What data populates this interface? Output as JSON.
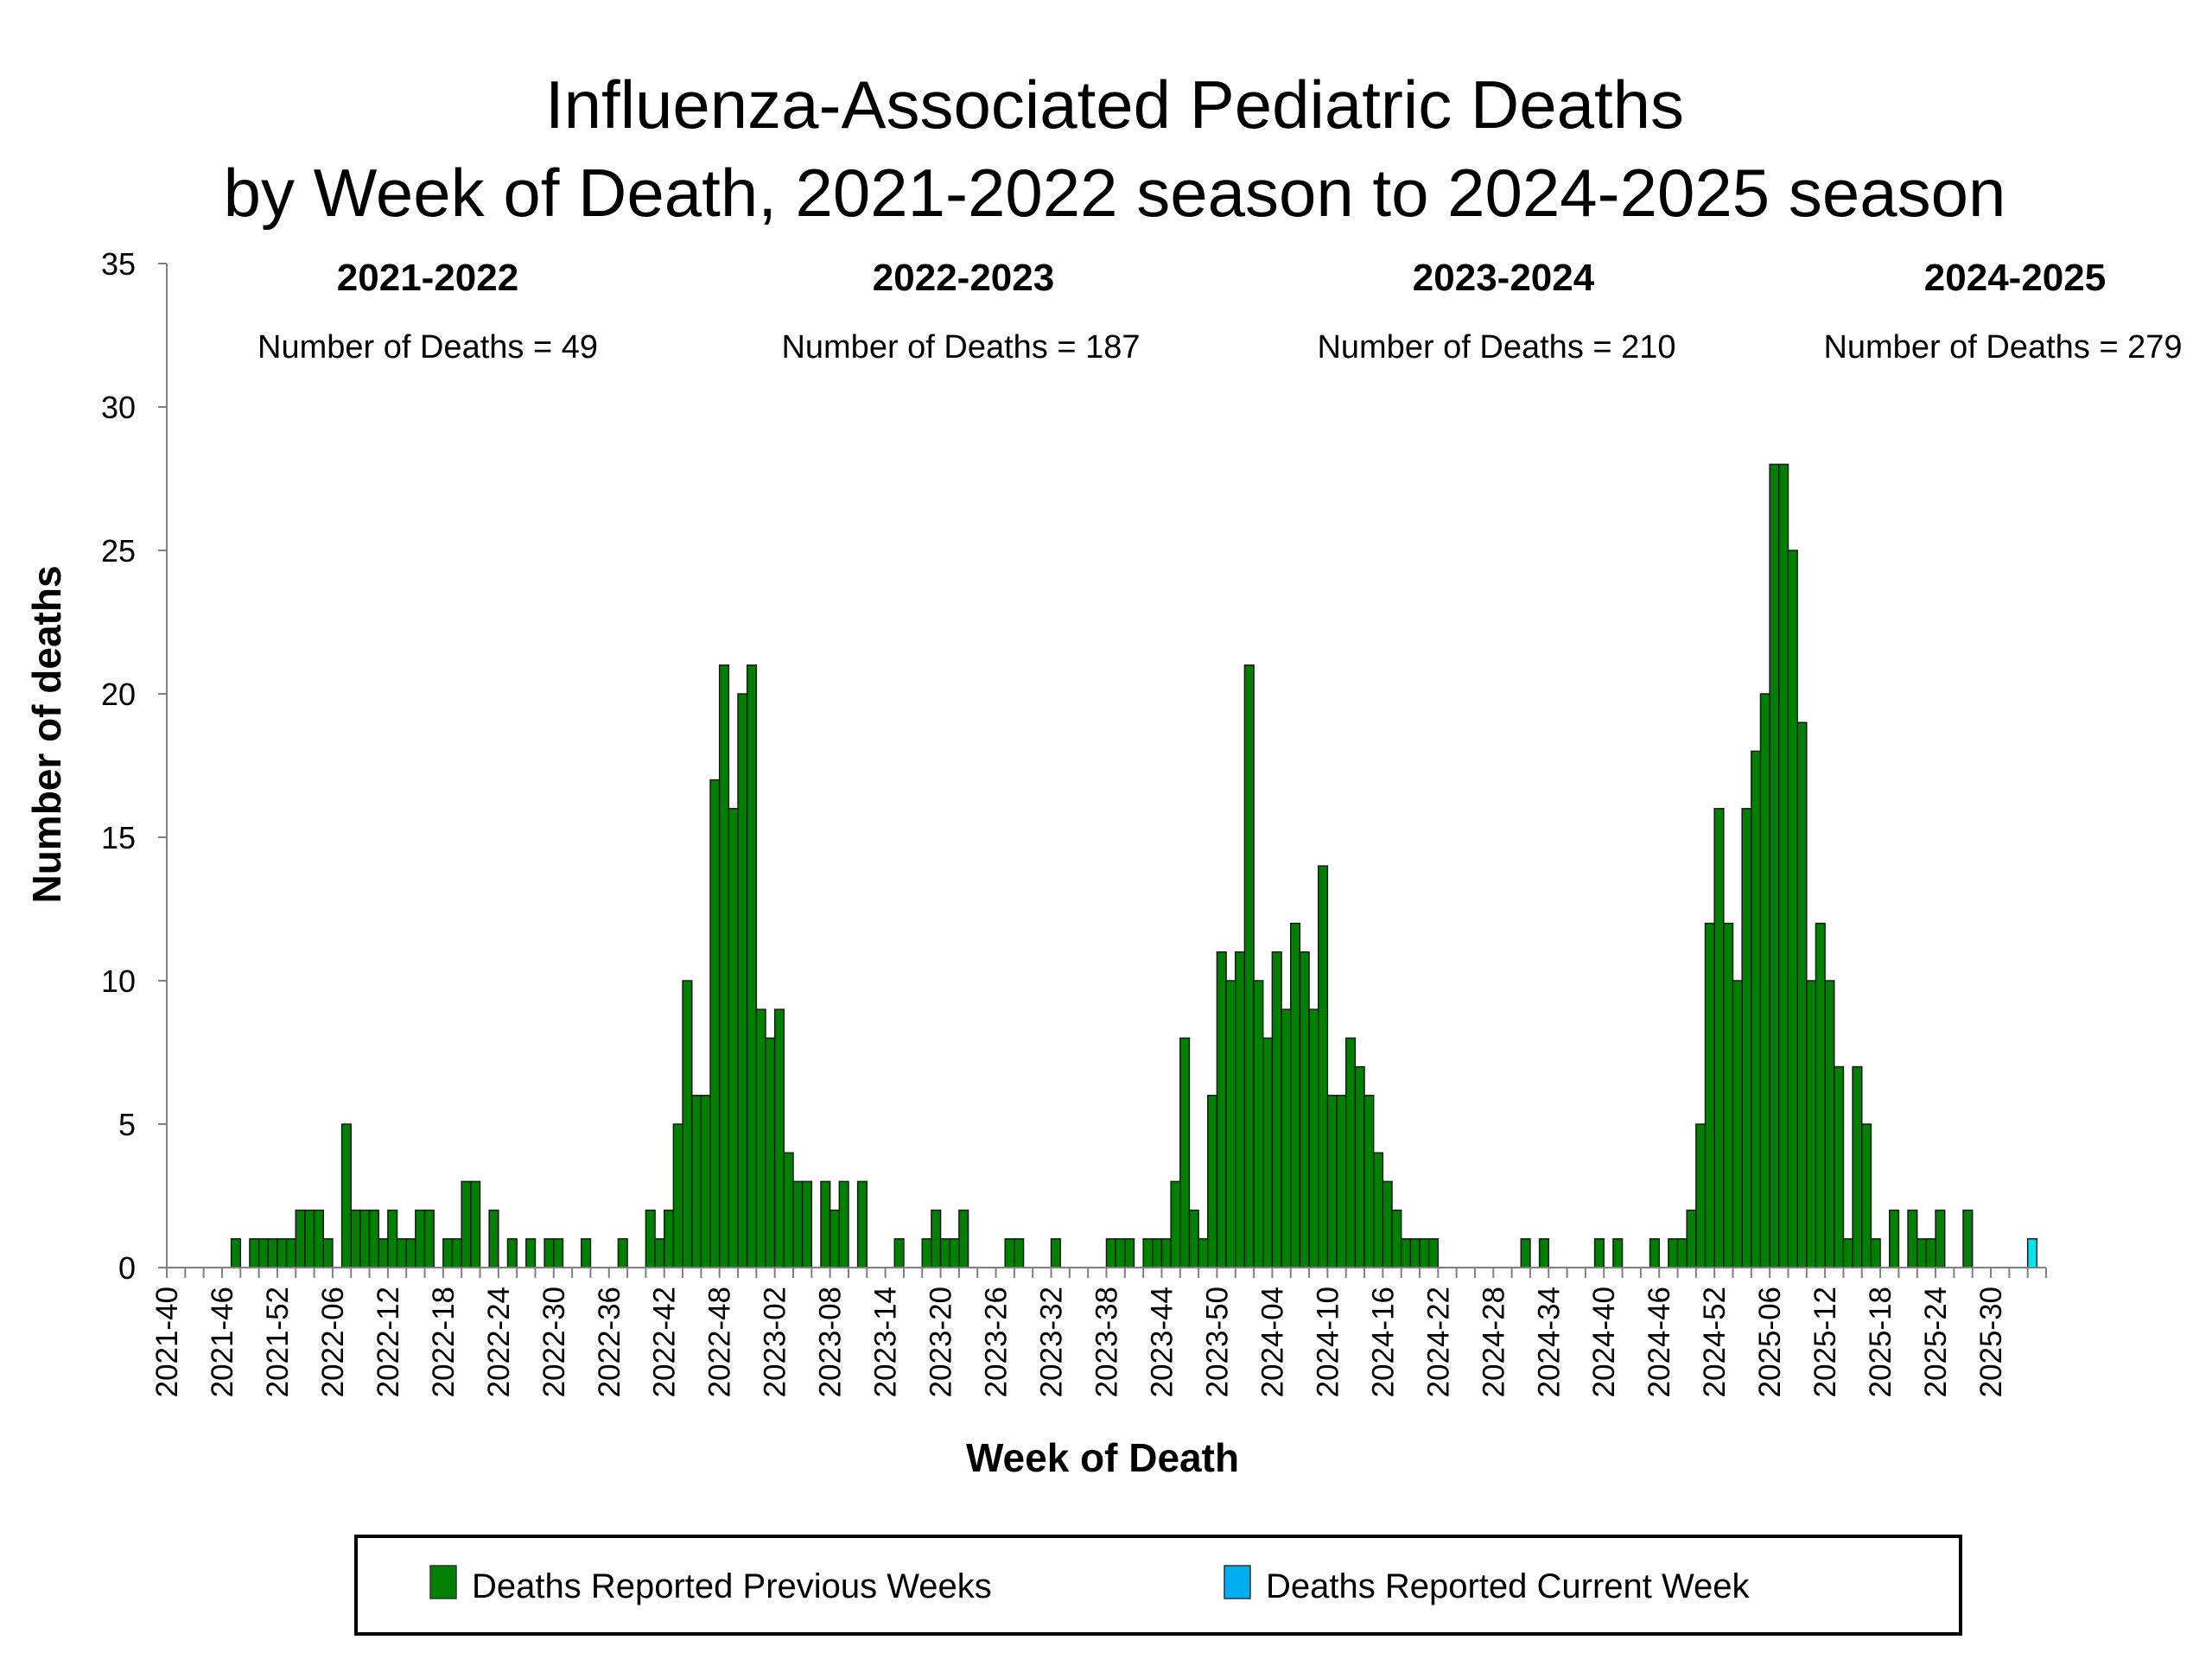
{
  "chart_data": {
    "type": "bar",
    "title": [
      "Influenza-Associated Pediatric Deaths",
      "by Week of Death, 2021-2022 season to 2024-2025 season"
    ],
    "xlabel": "Week of Death",
    "ylabel": "Number of deaths",
    "ylim": [
      0,
      35
    ],
    "yticks": [
      0,
      5,
      10,
      15,
      20,
      25,
      30,
      35
    ],
    "grid": false,
    "stacked": true,
    "legend_position": "bottom",
    "x_tick_labels": [
      "2021-40",
      "2021-46",
      "2021-52",
      "2022-06",
      "2022-12",
      "2022-18",
      "2022-24",
      "2022-30",
      "2022-36",
      "2022-42",
      "2022-48",
      "2023-02",
      "2023-08",
      "2023-14",
      "2023-20",
      "2023-26",
      "2023-32",
      "2023-38",
      "2023-44",
      "2023-50",
      "2024-04",
      "2024-10",
      "2024-16",
      "2024-22",
      "2024-28",
      "2024-34",
      "2024-40",
      "2024-46",
      "2024-52",
      "2025-06",
      "2025-12",
      "2025-18",
      "2025-24",
      "2025-30"
    ],
    "categories": [
      "2021-40",
      "2021-41",
      "2021-42",
      "2021-43",
      "2021-44",
      "2021-45",
      "2021-46",
      "2021-47",
      "2021-48",
      "2021-49",
      "2021-50",
      "2021-51",
      "2021-52",
      "2022-01",
      "2022-02",
      "2022-03",
      "2022-04",
      "2022-05",
      "2022-06",
      "2022-07",
      "2022-08",
      "2022-09",
      "2022-10",
      "2022-11",
      "2022-12",
      "2022-13",
      "2022-14",
      "2022-15",
      "2022-16",
      "2022-17",
      "2022-18",
      "2022-19",
      "2022-20",
      "2022-21",
      "2022-22",
      "2022-23",
      "2022-24",
      "2022-25",
      "2022-26",
      "2022-27",
      "2022-28",
      "2022-29",
      "2022-30",
      "2022-31",
      "2022-32",
      "2022-33",
      "2022-34",
      "2022-35",
      "2022-36",
      "2022-37",
      "2022-38",
      "2022-39",
      "2022-40",
      "2022-41",
      "2022-42",
      "2022-43",
      "2022-44",
      "2022-45",
      "2022-46",
      "2022-47",
      "2022-48",
      "2022-49",
      "2022-50",
      "2022-51",
      "2022-52",
      "2023-01",
      "2023-02",
      "2023-03",
      "2023-04",
      "2023-05",
      "2023-06",
      "2023-07",
      "2023-08",
      "2023-09",
      "2023-10",
      "2023-11",
      "2023-12",
      "2023-13",
      "2023-14",
      "2023-15",
      "2023-16",
      "2023-17",
      "2023-18",
      "2023-19",
      "2023-20",
      "2023-21",
      "2023-22",
      "2023-23",
      "2023-24",
      "2023-25",
      "2023-26",
      "2023-27",
      "2023-28",
      "2023-29",
      "2023-30",
      "2023-31",
      "2023-32",
      "2023-33",
      "2023-34",
      "2023-35",
      "2023-36",
      "2023-37",
      "2023-38",
      "2023-39",
      "2023-40",
      "2023-41",
      "2023-42",
      "2023-43",
      "2023-44",
      "2023-45",
      "2023-46",
      "2023-47",
      "2023-48",
      "2023-49",
      "2023-50",
      "2023-51",
      "2023-52",
      "2024-01",
      "2024-02",
      "2024-03",
      "2024-04",
      "2024-05",
      "2024-06",
      "2024-07",
      "2024-08",
      "2024-09",
      "2024-10",
      "2024-11",
      "2024-12",
      "2024-13",
      "2024-14",
      "2024-15",
      "2024-16",
      "2024-17",
      "2024-18",
      "2024-19",
      "2024-20",
      "2024-21",
      "2024-22",
      "2024-23",
      "2024-24",
      "2024-25",
      "2024-26",
      "2024-27",
      "2024-28",
      "2024-29",
      "2024-30",
      "2024-31",
      "2024-32",
      "2024-33",
      "2024-34",
      "2024-35",
      "2024-36",
      "2024-37",
      "2024-38",
      "2024-39",
      "2024-40",
      "2024-41",
      "2024-42",
      "2024-43",
      "2024-44",
      "2024-45",
      "2024-46",
      "2024-47",
      "2024-48",
      "2024-49",
      "2024-50",
      "2024-51",
      "2024-52",
      "2025-01",
      "2025-02",
      "2025-03",
      "2025-04",
      "2025-05",
      "2025-06",
      "2025-07",
      "2025-08",
      "2025-09",
      "2025-10",
      "2025-11",
      "2025-12",
      "2025-13",
      "2025-14",
      "2025-15",
      "2025-16",
      "2025-17",
      "2025-18",
      "2025-19",
      "2025-20",
      "2025-21",
      "2025-22",
      "2025-23",
      "2025-24",
      "2025-25",
      "2025-26",
      "2025-27",
      "2025-28",
      "2025-29",
      "2025-30",
      "2025-31",
      "2025-32",
      "2025-33",
      "2025-34",
      "2025-35"
    ],
    "series": [
      {
        "name": "Deaths Reported Previous Weeks",
        "color": "#008000",
        "values": [
          0,
          0,
          0,
          0,
          0,
          0,
          0,
          1,
          0,
          1,
          1,
          1,
          1,
          1,
          2,
          2,
          2,
          1,
          0,
          5,
          2,
          2,
          2,
          1,
          2,
          1,
          1,
          2,
          2,
          0,
          1,
          1,
          3,
          3,
          0,
          2,
          0,
          1,
          0,
          1,
          0,
          1,
          1,
          0,
          0,
          1,
          0,
          0,
          0,
          1,
          0,
          0,
          2,
          1,
          2,
          5,
          10,
          6,
          6,
          17,
          21,
          16,
          20,
          21,
          9,
          8,
          9,
          4,
          3,
          3,
          0,
          3,
          2,
          3,
          0,
          3,
          0,
          0,
          0,
          1,
          0,
          0,
          1,
          2,
          1,
          1,
          2,
          0,
          0,
          0,
          0,
          1,
          1,
          0,
          0,
          0,
          1,
          0,
          0,
          0,
          0,
          0,
          1,
          1,
          1,
          0,
          1,
          1,
          1,
          3,
          8,
          2,
          1,
          6,
          11,
          10,
          11,
          21,
          10,
          8,
          11,
          9,
          12,
          11,
          9,
          14,
          6,
          6,
          8,
          7,
          6,
          4,
          3,
          2,
          1,
          1,
          1,
          1,
          0,
          0,
          0,
          0,
          0,
          0,
          0,
          0,
          0,
          1,
          0,
          1,
          0,
          0,
          0,
          0,
          0,
          1,
          0,
          1,
          0,
          0,
          0,
          1,
          0,
          1,
          1,
          2,
          5,
          12,
          16,
          12,
          10,
          16,
          18,
          20,
          28,
          28,
          25,
          19,
          10,
          12,
          10,
          7,
          1,
          7,
          5,
          1,
          0,
          2,
          0,
          2,
          1,
          1,
          2,
          0,
          0,
          2,
          0,
          0,
          0,
          0,
          0,
          0,
          0,
          0
        ]
      },
      {
        "name": "Deaths Reported Current Week",
        "color": "#00E5EE",
        "legend_color": "#00AEEF",
        "values": [
          0,
          0,
          0,
          0,
          0,
          0,
          0,
          0,
          0,
          0,
          0,
          0,
          0,
          0,
          0,
          0,
          0,
          0,
          0,
          0,
          0,
          0,
          0,
          0,
          0,
          0,
          0,
          0,
          0,
          0,
          0,
          0,
          0,
          0,
          0,
          0,
          0,
          0,
          0,
          0,
          0,
          0,
          0,
          0,
          0,
          0,
          0,
          0,
          0,
          0,
          0,
          0,
          0,
          0,
          0,
          0,
          0,
          0,
          0,
          0,
          0,
          0,
          0,
          0,
          0,
          0,
          0,
          0,
          0,
          0,
          0,
          0,
          0,
          0,
          0,
          0,
          0,
          0,
          0,
          0,
          0,
          0,
          0,
          0,
          0,
          0,
          0,
          0,
          0,
          0,
          0,
          0,
          0,
          0,
          0,
          0,
          0,
          0,
          0,
          0,
          0,
          0,
          0,
          0,
          0,
          0,
          0,
          0,
          0,
          0,
          0,
          0,
          0,
          0,
          0,
          0,
          0,
          0,
          0,
          0,
          0,
          0,
          0,
          0,
          0,
          0,
          0,
          0,
          0,
          0,
          0,
          0,
          0,
          0,
          0,
          0,
          0,
          0,
          0,
          0,
          0,
          0,
          0,
          0,
          0,
          0,
          0,
          0,
          0,
          0,
          0,
          0,
          0,
          0,
          0,
          0,
          0,
          0,
          0,
          0,
          0,
          0,
          0,
          0,
          0,
          0,
          0,
          0,
          0,
          0,
          0,
          0,
          0,
          0,
          0,
          0,
          0,
          0,
          0,
          0,
          0,
          0,
          0,
          0,
          0,
          0,
          0,
          0,
          0,
          0,
          0,
          0,
          0,
          0,
          0,
          0,
          0,
          0,
          0,
          0,
          0,
          0,
          1,
          0
        ]
      }
    ],
    "annotations": [
      {
        "season": "2021-2022",
        "text": "Number of Deaths = 49"
      },
      {
        "season": "2022-2023",
        "text": "Number of Deaths = 187"
      },
      {
        "season": "2023-2024",
        "text": "Number of Deaths = 210"
      },
      {
        "season": "2024-2025",
        "text": "Number of Deaths = 279"
      }
    ]
  }
}
